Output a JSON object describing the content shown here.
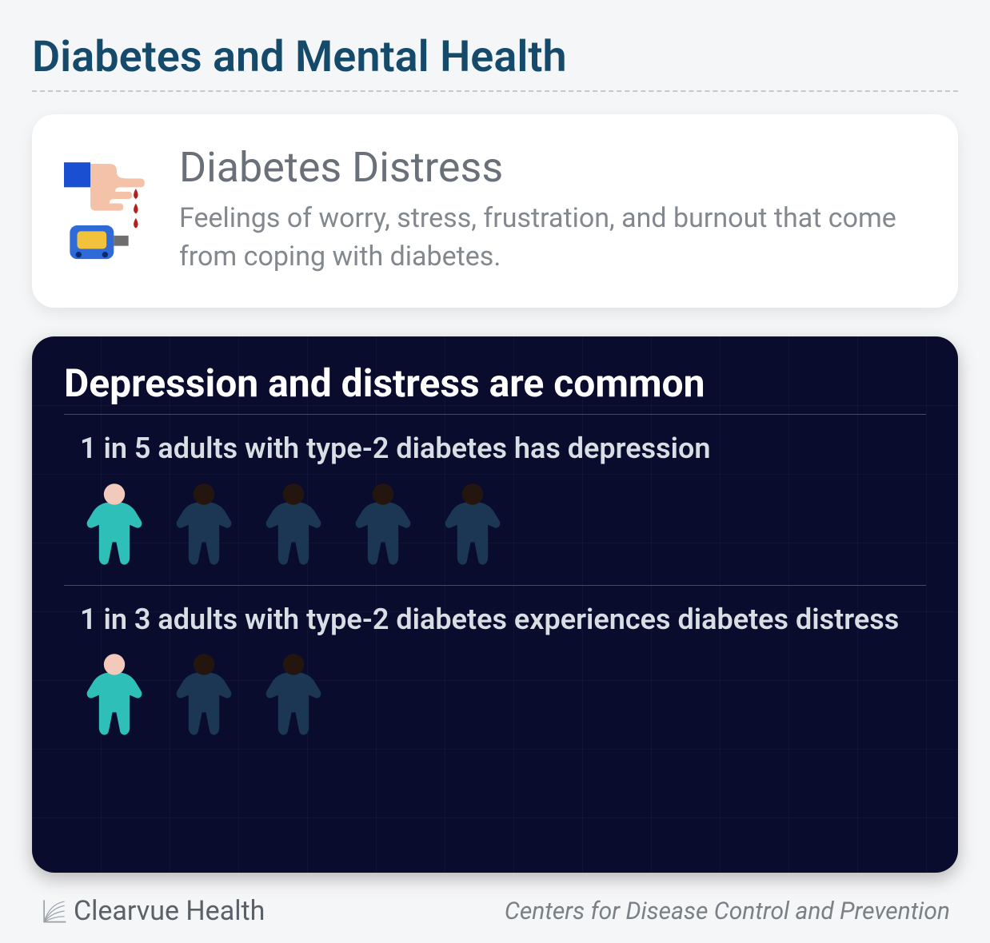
{
  "title": {
    "text": "Diabetes and Mental Health",
    "color": "#154a6b",
    "fontsize": 54
  },
  "divider_color": "#c5c9cc",
  "card_definition": {
    "title": "Diabetes Distress",
    "title_color": "#6a7079",
    "body": "Feelings of worry, stress, frustration, and burnout that come from coping with diabetes.",
    "body_color": "#83888f",
    "background": "#ffffff",
    "border_radius": 28,
    "icon": {
      "hand_skin": "#f4c2a8",
      "sleeve": "#1b4fd1",
      "blood": "#b71f1f",
      "meter_body": "#2f6bd8",
      "meter_screen": "#f2c23d",
      "meter_dot": "#0b2b6b",
      "meter_side": "#6e6e6e"
    }
  },
  "card_stats": {
    "background": "#0a0c2e",
    "grid_color": "rgba(255,255,255,0.028)",
    "grid_size": 86,
    "title": "Depression and distress are common",
    "title_color": "#ffffff",
    "divider_color": "rgba(255,255,255,0.25)",
    "text_color": "#d9dee4",
    "stat1": "1 in 5 adults with type-2 diabetes has depression",
    "stat2": "1 in 3 adults with type-2 diabetes experiences diabetes distress",
    "pictograph1": {
      "total": 5,
      "highlighted": 1
    },
    "pictograph2": {
      "total": 3,
      "highlighted": 1
    },
    "person_highlight": {
      "body": "#2fbfb9",
      "head": "#f2c9ba"
    },
    "person_dim": {
      "body": "#1b3753",
      "head": "#24160f"
    }
  },
  "footer": {
    "brand": "Clearvue Health",
    "brand_color": "#5b6168",
    "source": "Centers for Disease Control and Prevention",
    "source_color": "#7a8086",
    "logo_stroke": "#9aa1a8"
  }
}
